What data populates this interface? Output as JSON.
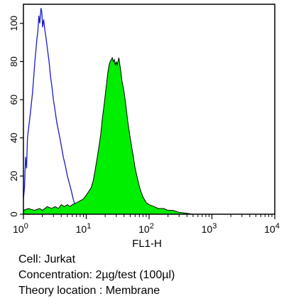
{
  "chart_data": {
    "type": "area",
    "xlabel": "FL1-H",
    "x_scale": "log",
    "xlim": [
      1,
      10000
    ],
    "ylim": [
      0,
      110
    ],
    "x_ticks": [
      {
        "value": 1,
        "base": "10",
        "exp": "0"
      },
      {
        "value": 10,
        "base": "10",
        "exp": "1"
      },
      {
        "value": 100,
        "base": "10",
        "exp": "2"
      },
      {
        "value": 1000,
        "base": "10",
        "exp": "3"
      },
      {
        "value": 10000,
        "base": "10",
        "exp": "4"
      }
    ],
    "y_ticks": [
      0,
      20,
      40,
      60,
      80,
      100
    ],
    "series": [
      {
        "style": "outline",
        "color": "#1a1acc",
        "points": [
          [
            1.0,
            8
          ],
          [
            1.04,
            14
          ],
          [
            1.08,
            30
          ],
          [
            1.12,
            24
          ],
          [
            1.16,
            40
          ],
          [
            1.22,
            46
          ],
          [
            1.28,
            52
          ],
          [
            1.34,
            58
          ],
          [
            1.4,
            64
          ],
          [
            1.46,
            72
          ],
          [
            1.52,
            80
          ],
          [
            1.58,
            86
          ],
          [
            1.64,
            92
          ],
          [
            1.7,
            96
          ],
          [
            1.76,
            104
          ],
          [
            1.82,
            100
          ],
          [
            1.9,
            108
          ],
          [
            1.96,
            106
          ],
          [
            2.02,
            98
          ],
          [
            2.1,
            102
          ],
          [
            2.2,
            96
          ],
          [
            2.3,
            92
          ],
          [
            2.42,
            86
          ],
          [
            2.56,
            80
          ],
          [
            2.7,
            72
          ],
          [
            2.86,
            66
          ],
          [
            3.0,
            60
          ],
          [
            3.2,
            54
          ],
          [
            3.4,
            48
          ],
          [
            3.6,
            44
          ],
          [
            3.8,
            40
          ],
          [
            4.0,
            36
          ],
          [
            4.3,
            30
          ],
          [
            4.6,
            26
          ],
          [
            5.0,
            20
          ],
          [
            5.4,
            16
          ],
          [
            5.8,
            12
          ],
          [
            6.2,
            8
          ],
          [
            6.6,
            5
          ],
          [
            7.2,
            3
          ],
          [
            8.0,
            2
          ],
          [
            9.0,
            1.5
          ],
          [
            10,
            1.5
          ]
        ]
      },
      {
        "style": "filled",
        "color": "#00ee00",
        "points": [
          [
            1.0,
            2
          ],
          [
            1.2,
            3
          ],
          [
            1.5,
            2
          ],
          [
            1.8,
            3
          ],
          [
            2.0,
            2
          ],
          [
            2.4,
            4
          ],
          [
            2.8,
            3
          ],
          [
            3.2,
            4
          ],
          [
            3.6,
            3
          ],
          [
            4.0,
            5
          ],
          [
            4.5,
            4
          ],
          [
            5.0,
            5
          ],
          [
            5.5,
            4
          ],
          [
            6.0,
            5
          ],
          [
            7.0,
            6
          ],
          [
            8.0,
            7
          ],
          [
            9.0,
            8
          ],
          [
            10.0,
            10
          ],
          [
            11,
            12
          ],
          [
            12,
            14
          ],
          [
            13,
            18
          ],
          [
            14,
            24
          ],
          [
            15,
            30
          ],
          [
            16,
            36
          ],
          [
            17,
            42
          ],
          [
            18,
            50
          ],
          [
            19,
            56
          ],
          [
            20,
            62
          ],
          [
            21,
            68
          ],
          [
            22,
            74
          ],
          [
            23,
            78
          ],
          [
            24,
            80
          ],
          [
            25,
            81
          ],
          [
            26,
            82
          ],
          [
            27,
            80
          ],
          [
            28,
            81
          ],
          [
            29,
            78
          ],
          [
            30,
            80
          ],
          [
            31,
            78
          ],
          [
            33,
            82
          ],
          [
            35,
            76
          ],
          [
            37,
            70
          ],
          [
            40,
            64
          ],
          [
            43,
            56
          ],
          [
            46,
            48
          ],
          [
            50,
            40
          ],
          [
            55,
            32
          ],
          [
            60,
            24
          ],
          [
            66,
            18
          ],
          [
            72,
            13
          ],
          [
            80,
            9
          ],
          [
            90,
            6
          ],
          [
            100,
            5
          ],
          [
            120,
            4
          ],
          [
            140,
            3
          ],
          [
            170,
            3
          ],
          [
            200,
            2
          ],
          [
            240,
            2
          ],
          [
            300,
            1
          ],
          [
            400,
            0.5
          ],
          [
            500,
            0
          ]
        ]
      }
    ]
  },
  "info": {
    "cell": "Cell: Jurkat",
    "concentration": "Concentration: 2µg/test (100µl)",
    "theory_location": "Theory location :  Membrane"
  }
}
